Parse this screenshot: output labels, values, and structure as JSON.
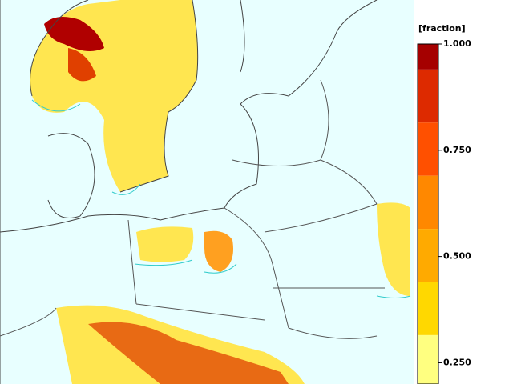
{
  "colorbar": {
    "label": "[fraction]",
    "lim": [
      0.2,
      1.0
    ],
    "ticks": [
      {
        "value": 1.0,
        "label": "1.000"
      },
      {
        "value": 0.75,
        "label": "0.750"
      },
      {
        "value": 0.5,
        "label": "0.500"
      },
      {
        "value": 0.25,
        "label": "0.250"
      }
    ],
    "bands": [
      {
        "from": 0.94,
        "to": 1.0,
        "color": "#a50000"
      },
      {
        "from": 0.815,
        "to": 0.94,
        "color": "#dd2a00"
      },
      {
        "from": 0.69,
        "to": 0.815,
        "color": "#ff5000"
      },
      {
        "from": 0.565,
        "to": 0.69,
        "color": "#ff8800"
      },
      {
        "from": 0.44,
        "to": 0.565,
        "color": "#ffaa00"
      },
      {
        "from": 0.315,
        "to": 0.44,
        "color": "#ffd800"
      },
      {
        "from": 0.2,
        "to": 0.315,
        "color": "#ffff80"
      }
    ]
  }
}
